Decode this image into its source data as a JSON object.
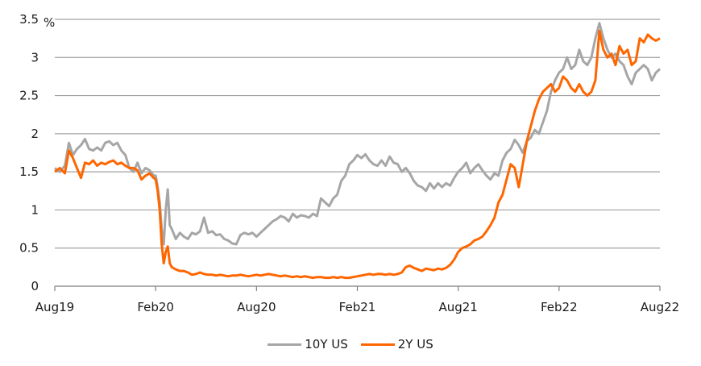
{
  "chart_data": {
    "type": "line",
    "title": "",
    "xlabel": "",
    "ylabel": "%",
    "ylim": [
      0,
      3.5
    ],
    "y_ticks": [
      "0",
      "0.5",
      "1",
      "1.5",
      "2",
      "2.5",
      "3",
      "3.5"
    ],
    "x_ticks": [
      "Aug19",
      "Feb20",
      "Aug20",
      "Feb21",
      "Aug21",
      "Feb22",
      "Aug22"
    ],
    "grid": true,
    "legend_position": "bottom",
    "series": [
      {
        "name": "10Y US",
        "color": "#a6a6a6",
        "points": [
          [
            0.0,
            1.55
          ],
          [
            0.05,
            1.5
          ],
          [
            0.1,
            1.58
          ],
          [
            0.14,
            1.88
          ],
          [
            0.18,
            1.72
          ],
          [
            0.22,
            1.8
          ],
          [
            0.26,
            1.85
          ],
          [
            0.3,
            1.93
          ],
          [
            0.34,
            1.8
          ],
          [
            0.38,
            1.78
          ],
          [
            0.42,
            1.82
          ],
          [
            0.46,
            1.78
          ],
          [
            0.5,
            1.88
          ],
          [
            0.54,
            1.9
          ],
          [
            0.58,
            1.85
          ],
          [
            0.62,
            1.88
          ],
          [
            0.66,
            1.78
          ],
          [
            0.7,
            1.72
          ],
          [
            0.74,
            1.55
          ],
          [
            0.78,
            1.5
          ],
          [
            0.82,
            1.62
          ],
          [
            0.86,
            1.48
          ],
          [
            0.9,
            1.55
          ],
          [
            0.94,
            1.52
          ],
          [
            0.98,
            1.45
          ],
          [
            1.0,
            1.45
          ],
          [
            1.02,
            1.3
          ],
          [
            1.04,
            1.1
          ],
          [
            1.06,
            0.75
          ],
          [
            1.08,
            0.55
          ],
          [
            1.1,
            1.0
          ],
          [
            1.12,
            1.27
          ],
          [
            1.14,
            0.8
          ],
          [
            1.16,
            0.75
          ],
          [
            1.2,
            0.62
          ],
          [
            1.24,
            0.7
          ],
          [
            1.28,
            0.65
          ],
          [
            1.32,
            0.62
          ],
          [
            1.36,
            0.7
          ],
          [
            1.4,
            0.68
          ],
          [
            1.44,
            0.72
          ],
          [
            1.48,
            0.9
          ],
          [
            1.52,
            0.7
          ],
          [
            1.56,
            0.72
          ],
          [
            1.6,
            0.67
          ],
          [
            1.64,
            0.68
          ],
          [
            1.68,
            0.62
          ],
          [
            1.72,
            0.6
          ],
          [
            1.76,
            0.56
          ],
          [
            1.8,
            0.55
          ],
          [
            1.84,
            0.67
          ],
          [
            1.88,
            0.7
          ],
          [
            1.92,
            0.68
          ],
          [
            1.96,
            0.7
          ],
          [
            2.0,
            0.65
          ],
          [
            2.04,
            0.7
          ],
          [
            2.08,
            0.75
          ],
          [
            2.12,
            0.8
          ],
          [
            2.16,
            0.85
          ],
          [
            2.2,
            0.88
          ],
          [
            2.24,
            0.92
          ],
          [
            2.28,
            0.9
          ],
          [
            2.32,
            0.85
          ],
          [
            2.36,
            0.95
          ],
          [
            2.4,
            0.9
          ],
          [
            2.44,
            0.93
          ],
          [
            2.48,
            0.92
          ],
          [
            2.52,
            0.9
          ],
          [
            2.56,
            0.95
          ],
          [
            2.6,
            0.92
          ],
          [
            2.64,
            1.15
          ],
          [
            2.68,
            1.1
          ],
          [
            2.72,
            1.05
          ],
          [
            2.76,
            1.15
          ],
          [
            2.8,
            1.2
          ],
          [
            2.84,
            1.38
          ],
          [
            2.88,
            1.45
          ],
          [
            2.92,
            1.6
          ],
          [
            2.96,
            1.65
          ],
          [
            3.0,
            1.72
          ],
          [
            3.04,
            1.68
          ],
          [
            3.08,
            1.73
          ],
          [
            3.12,
            1.65
          ],
          [
            3.16,
            1.6
          ],
          [
            3.2,
            1.58
          ],
          [
            3.24,
            1.65
          ],
          [
            3.28,
            1.58
          ],
          [
            3.32,
            1.7
          ],
          [
            3.36,
            1.62
          ],
          [
            3.4,
            1.6
          ],
          [
            3.44,
            1.5
          ],
          [
            3.48,
            1.55
          ],
          [
            3.52,
            1.48
          ],
          [
            3.56,
            1.38
          ],
          [
            3.6,
            1.32
          ],
          [
            3.64,
            1.3
          ],
          [
            3.68,
            1.25
          ],
          [
            3.72,
            1.35
          ],
          [
            3.76,
            1.28
          ],
          [
            3.8,
            1.35
          ],
          [
            3.84,
            1.3
          ],
          [
            3.88,
            1.35
          ],
          [
            3.92,
            1.32
          ],
          [
            3.96,
            1.42
          ],
          [
            4.0,
            1.5
          ],
          [
            4.04,
            1.55
          ],
          [
            4.08,
            1.62
          ],
          [
            4.12,
            1.48
          ],
          [
            4.16,
            1.55
          ],
          [
            4.2,
            1.6
          ],
          [
            4.24,
            1.52
          ],
          [
            4.28,
            1.45
          ],
          [
            4.32,
            1.4
          ],
          [
            4.36,
            1.48
          ],
          [
            4.4,
            1.45
          ],
          [
            4.44,
            1.65
          ],
          [
            4.48,
            1.75
          ],
          [
            4.52,
            1.8
          ],
          [
            4.56,
            1.92
          ],
          [
            4.6,
            1.85
          ],
          [
            4.64,
            1.75
          ],
          [
            4.68,
            1.9
          ],
          [
            4.72,
            1.95
          ],
          [
            4.76,
            2.05
          ],
          [
            4.8,
            2.0
          ],
          [
            4.84,
            2.15
          ],
          [
            4.88,
            2.3
          ],
          [
            4.92,
            2.55
          ],
          [
            4.96,
            2.7
          ],
          [
            5.0,
            2.8
          ],
          [
            5.04,
            2.85
          ],
          [
            5.08,
            3.0
          ],
          [
            5.12,
            2.85
          ],
          [
            5.16,
            2.9
          ],
          [
            5.2,
            3.1
          ],
          [
            5.24,
            2.95
          ],
          [
            5.28,
            2.9
          ],
          [
            5.32,
            3.0
          ],
          [
            5.36,
            3.25
          ],
          [
            5.4,
            3.45
          ],
          [
            5.44,
            3.25
          ],
          [
            5.48,
            3.1
          ],
          [
            5.52,
            3.0
          ],
          [
            5.56,
            3.05
          ],
          [
            5.6,
            2.95
          ],
          [
            5.64,
            2.9
          ],
          [
            5.68,
            2.75
          ],
          [
            5.72,
            2.65
          ],
          [
            5.76,
            2.8
          ],
          [
            5.8,
            2.85
          ],
          [
            5.84,
            2.9
          ],
          [
            5.88,
            2.85
          ],
          [
            5.92,
            2.7
          ],
          [
            5.96,
            2.8
          ],
          [
            6.0,
            2.85
          ]
        ]
      },
      {
        "name": "2Y US",
        "color": "#ff6600",
        "points": [
          [
            0.0,
            1.5
          ],
          [
            0.05,
            1.55
          ],
          [
            0.1,
            1.48
          ],
          [
            0.14,
            1.78
          ],
          [
            0.18,
            1.68
          ],
          [
            0.22,
            1.55
          ],
          [
            0.26,
            1.42
          ],
          [
            0.3,
            1.62
          ],
          [
            0.34,
            1.6
          ],
          [
            0.38,
            1.65
          ],
          [
            0.42,
            1.58
          ],
          [
            0.46,
            1.62
          ],
          [
            0.5,
            1.6
          ],
          [
            0.54,
            1.63
          ],
          [
            0.58,
            1.65
          ],
          [
            0.62,
            1.6
          ],
          [
            0.66,
            1.62
          ],
          [
            0.7,
            1.58
          ],
          [
            0.74,
            1.55
          ],
          [
            0.78,
            1.55
          ],
          [
            0.82,
            1.52
          ],
          [
            0.86,
            1.4
          ],
          [
            0.9,
            1.45
          ],
          [
            0.94,
            1.48
          ],
          [
            0.98,
            1.42
          ],
          [
            1.0,
            1.4
          ],
          [
            1.02,
            1.25
          ],
          [
            1.04,
            1.0
          ],
          [
            1.06,
            0.55
          ],
          [
            1.08,
            0.3
          ],
          [
            1.1,
            0.45
          ],
          [
            1.12,
            0.52
          ],
          [
            1.14,
            0.3
          ],
          [
            1.16,
            0.25
          ],
          [
            1.2,
            0.22
          ],
          [
            1.24,
            0.2
          ],
          [
            1.28,
            0.2
          ],
          [
            1.32,
            0.18
          ],
          [
            1.36,
            0.15
          ],
          [
            1.4,
            0.16
          ],
          [
            1.44,
            0.18
          ],
          [
            1.48,
            0.16
          ],
          [
            1.52,
            0.15
          ],
          [
            1.56,
            0.15
          ],
          [
            1.6,
            0.14
          ],
          [
            1.64,
            0.15
          ],
          [
            1.68,
            0.14
          ],
          [
            1.72,
            0.13
          ],
          [
            1.76,
            0.14
          ],
          [
            1.8,
            0.14
          ],
          [
            1.84,
            0.15
          ],
          [
            1.88,
            0.14
          ],
          [
            1.92,
            0.13
          ],
          [
            1.96,
            0.14
          ],
          [
            2.0,
            0.15
          ],
          [
            2.04,
            0.14
          ],
          [
            2.08,
            0.15
          ],
          [
            2.12,
            0.16
          ],
          [
            2.16,
            0.15
          ],
          [
            2.2,
            0.14
          ],
          [
            2.24,
            0.13
          ],
          [
            2.28,
            0.14
          ],
          [
            2.32,
            0.13
          ],
          [
            2.36,
            0.12
          ],
          [
            2.4,
            0.13
          ],
          [
            2.44,
            0.12
          ],
          [
            2.48,
            0.13
          ],
          [
            2.52,
            0.12
          ],
          [
            2.56,
            0.11
          ],
          [
            2.6,
            0.12
          ],
          [
            2.64,
            0.12
          ],
          [
            2.68,
            0.11
          ],
          [
            2.72,
            0.11
          ],
          [
            2.76,
            0.12
          ],
          [
            2.8,
            0.11
          ],
          [
            2.84,
            0.12
          ],
          [
            2.88,
            0.11
          ],
          [
            2.92,
            0.11
          ],
          [
            2.96,
            0.12
          ],
          [
            3.0,
            0.13
          ],
          [
            3.04,
            0.14
          ],
          [
            3.08,
            0.15
          ],
          [
            3.12,
            0.16
          ],
          [
            3.16,
            0.15
          ],
          [
            3.2,
            0.16
          ],
          [
            3.24,
            0.16
          ],
          [
            3.28,
            0.15
          ],
          [
            3.32,
            0.16
          ],
          [
            3.36,
            0.15
          ],
          [
            3.4,
            0.16
          ],
          [
            3.44,
            0.18
          ],
          [
            3.48,
            0.25
          ],
          [
            3.52,
            0.27
          ],
          [
            3.56,
            0.24
          ],
          [
            3.6,
            0.22
          ],
          [
            3.64,
            0.2
          ],
          [
            3.68,
            0.23
          ],
          [
            3.72,
            0.22
          ],
          [
            3.76,
            0.21
          ],
          [
            3.8,
            0.23
          ],
          [
            3.84,
            0.22
          ],
          [
            3.88,
            0.24
          ],
          [
            3.92,
            0.28
          ],
          [
            3.96,
            0.35
          ],
          [
            4.0,
            0.45
          ],
          [
            4.04,
            0.5
          ],
          [
            4.08,
            0.52
          ],
          [
            4.12,
            0.55
          ],
          [
            4.16,
            0.6
          ],
          [
            4.2,
            0.62
          ],
          [
            4.24,
            0.65
          ],
          [
            4.28,
            0.72
          ],
          [
            4.32,
            0.8
          ],
          [
            4.36,
            0.9
          ],
          [
            4.4,
            1.1
          ],
          [
            4.44,
            1.2
          ],
          [
            4.48,
            1.4
          ],
          [
            4.52,
            1.6
          ],
          [
            4.56,
            1.55
          ],
          [
            4.6,
            1.3
          ],
          [
            4.64,
            1.6
          ],
          [
            4.68,
            1.9
          ],
          [
            4.72,
            2.1
          ],
          [
            4.76,
            2.3
          ],
          [
            4.8,
            2.45
          ],
          [
            4.84,
            2.55
          ],
          [
            4.88,
            2.6
          ],
          [
            4.92,
            2.65
          ],
          [
            4.96,
            2.55
          ],
          [
            5.0,
            2.6
          ],
          [
            5.04,
            2.75
          ],
          [
            5.08,
            2.7
          ],
          [
            5.12,
            2.6
          ],
          [
            5.16,
            2.55
          ],
          [
            5.2,
            2.65
          ],
          [
            5.24,
            2.55
          ],
          [
            5.28,
            2.5
          ],
          [
            5.32,
            2.55
          ],
          [
            5.36,
            2.7
          ],
          [
            5.4,
            3.35
          ],
          [
            5.44,
            3.1
          ],
          [
            5.48,
            3.0
          ],
          [
            5.52,
            3.05
          ],
          [
            5.56,
            2.9
          ],
          [
            5.6,
            3.15
          ],
          [
            5.64,
            3.05
          ],
          [
            5.68,
            3.1
          ],
          [
            5.72,
            2.9
          ],
          [
            5.76,
            2.95
          ],
          [
            5.8,
            3.25
          ],
          [
            5.84,
            3.2
          ],
          [
            5.88,
            3.3
          ],
          [
            5.92,
            3.25
          ],
          [
            5.96,
            3.22
          ],
          [
            6.0,
            3.25
          ]
        ]
      }
    ]
  },
  "axis": {
    "y_unit": "%"
  },
  "legend": {
    "items": [
      {
        "label": "10Y US",
        "color": "#a6a6a6"
      },
      {
        "label": "2Y US",
        "color": "#ff6600"
      }
    ]
  }
}
